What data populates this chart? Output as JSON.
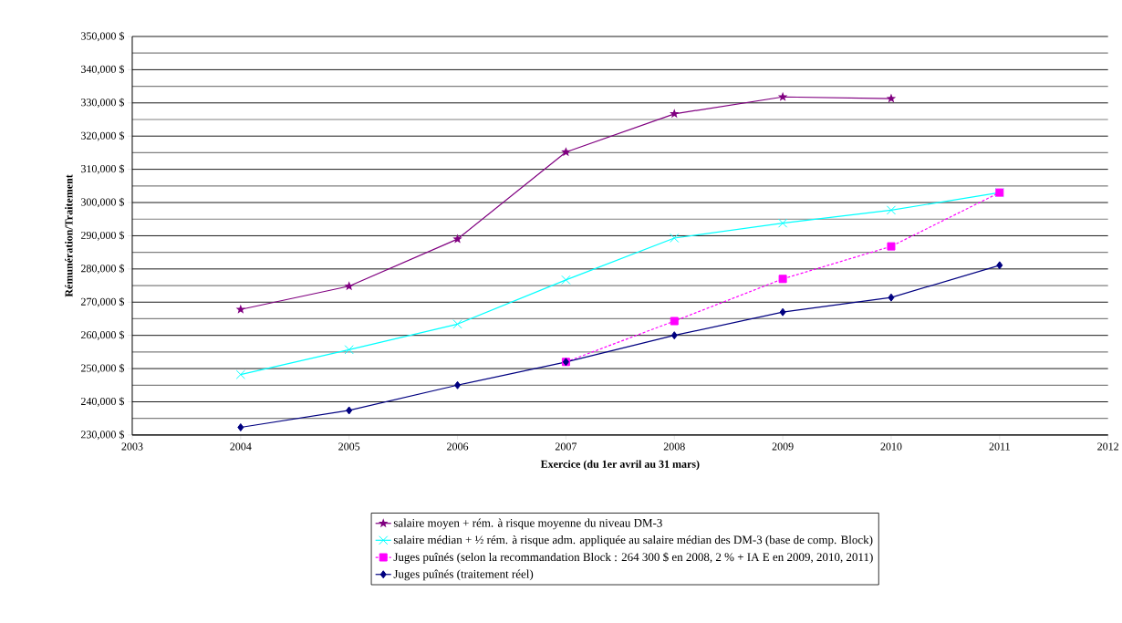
{
  "chart_data": {
    "type": "line",
    "xlabel": "Exercice (du 1er avril au 31 mars)",
    "ylabel": "Rémunération/Traitement",
    "x": [
      2004,
      2005,
      2006,
      2007,
      2008,
      2009,
      2010,
      2011
    ],
    "series": [
      {
        "name": "salaire moyen + rém. à risque moyenne du niveau DM-3",
        "color": "#800080",
        "marker": "star",
        "line_style": "solid",
        "values": [
          267800,
          274800,
          289000,
          315200,
          326700,
          331800,
          331300,
          null
        ]
      },
      {
        "name": "salaire médian + ½ rém. à risque adm. appliquée au salaire médian des DM-3 (base de comp. Block)",
        "color": "#00ffff",
        "marker": "cross",
        "line_style": "solid",
        "values": [
          248200,
          255700,
          263400,
          276700,
          289300,
          293800,
          297700,
          303000
        ]
      },
      {
        "name": "Juges puînés (selon la recommandation Block : 264 300 $ en 2008, 2 % + IA E en 2009, 2010, 2011)",
        "color": "#ff00ff",
        "marker": "square",
        "line_style": "dashed",
        "values": [
          null,
          null,
          null,
          252000,
          264300,
          277000,
          286800,
          303000
        ]
      },
      {
        "name": "Juges puînés (traitement réel)",
        "color": "#000080",
        "marker": "diamond",
        "line_style": "solid",
        "values": [
          232300,
          237400,
          245000,
          252000,
          260000,
          267000,
          271400,
          281100
        ]
      }
    ],
    "xlim": [
      2003,
      2012
    ],
    "xticks": [
      2003,
      2004,
      2005,
      2006,
      2007,
      2008,
      2009,
      2010,
      2011,
      2012
    ],
    "ylim": [
      230000,
      350000
    ],
    "yticks": [
      {
        "value": 230000,
        "label": "230,000 $"
      },
      {
        "value": 240000,
        "label": "240,000 $"
      },
      {
        "value": 250000,
        "label": "250,000 $"
      },
      {
        "value": 260000,
        "label": "260,000 $"
      },
      {
        "value": 270000,
        "label": "270,000 $"
      },
      {
        "value": 280000,
        "label": "280,000 $"
      },
      {
        "value": 290000,
        "label": "290,000 $"
      },
      {
        "value": 300000,
        "label": "300,000 $"
      },
      {
        "value": 310000,
        "label": "310,000 $"
      },
      {
        "value": 320000,
        "label": "320,000 $"
      },
      {
        "value": 330000,
        "label": "330,000 $"
      },
      {
        "value": 340000,
        "label": "340,000 $"
      },
      {
        "value": 350000,
        "label": "350,000 $"
      }
    ],
    "grid": "y",
    "legend": "bottom"
  }
}
